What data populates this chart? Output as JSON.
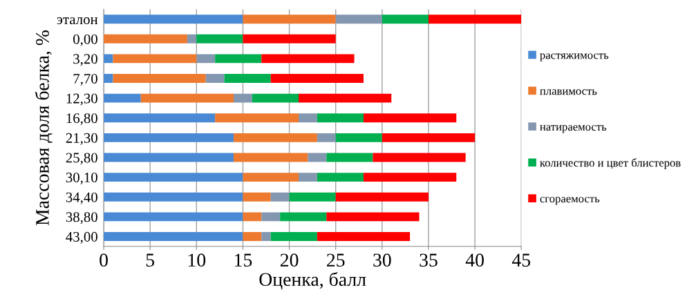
{
  "chart_data": {
    "type": "bar",
    "orientation": "horizontal",
    "stacked": true,
    "xlabel": "Оценка, балл",
    "ylabel": "Массовая доля белка, %",
    "categories": [
      "эталон",
      "0,00",
      "3,20",
      "7,70",
      "12,30",
      "16,80",
      "21,30",
      "25,80",
      "30,10",
      "34,40",
      "38,80",
      "43,00"
    ],
    "series": [
      {
        "name": "растяжимость",
        "color": "#4a8ad4",
        "values": [
          15,
          0,
          1,
          1,
          4,
          12,
          14,
          14,
          15,
          15,
          15,
          15
        ]
      },
      {
        "name": "плавимость",
        "color": "#ed7a2e",
        "values": [
          10,
          9,
          9,
          10,
          10,
          9,
          9,
          8,
          6,
          3,
          2,
          2
        ]
      },
      {
        "name": "натираемость",
        "color": "#8497b0",
        "values": [
          5,
          1,
          2,
          2,
          2,
          2,
          2,
          2,
          2,
          2,
          2,
          1
        ]
      },
      {
        "name": "количество и цвет блистеров",
        "color": "#00b050",
        "values": [
          5,
          5,
          5,
          5,
          5,
          5,
          5,
          5,
          5,
          5,
          5,
          5
        ]
      },
      {
        "name": "сгораемость",
        "color": "#ff0000",
        "values": [
          10,
          10,
          10,
          10,
          10,
          10,
          10,
          10,
          10,
          10,
          10,
          10
        ]
      }
    ],
    "xlim": [
      0,
      45
    ],
    "xticks": [
      0,
      5,
      10,
      15,
      20,
      25,
      30,
      35,
      40,
      45
    ],
    "grid": "x",
    "legend": "right"
  }
}
